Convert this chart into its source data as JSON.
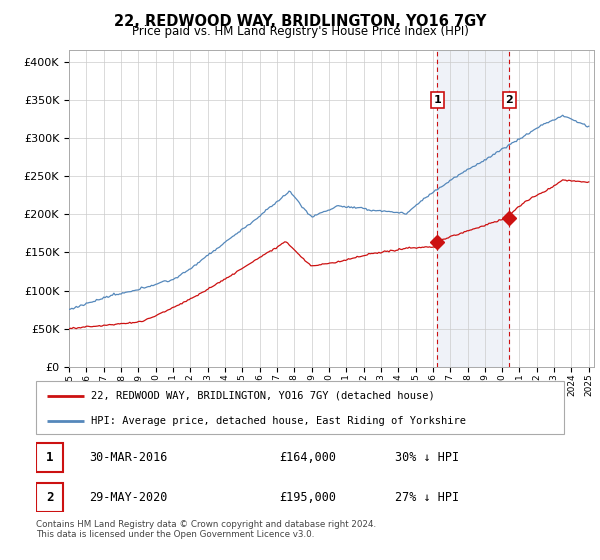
{
  "title": "22, REDWOOD WAY, BRIDLINGTON, YO16 7GY",
  "subtitle": "Price paid vs. HM Land Registry's House Price Index (HPI)",
  "y_values": [
    0,
    50000,
    100000,
    150000,
    200000,
    250000,
    300000,
    350000,
    400000
  ],
  "ylim": [
    0,
    415000
  ],
  "hpi_color": "#5588bb",
  "price_color": "#cc1111",
  "vline_color": "#cc1111",
  "marker1_year": 2016.25,
  "marker1_value": 164000,
  "marker2_year": 2020.42,
  "marker2_value": 195000,
  "legend_property_label": "22, REDWOOD WAY, BRIDLINGTON, YO16 7GY (detached house)",
  "legend_hpi_label": "HPI: Average price, detached house, East Riding of Yorkshire",
  "table_row1": [
    "1",
    "30-MAR-2016",
    "£164,000",
    "30% ↓ HPI"
  ],
  "table_row2": [
    "2",
    "29-MAY-2020",
    "£195,000",
    "27% ↓ HPI"
  ],
  "footer_text": "Contains HM Land Registry data © Crown copyright and database right 2024.\nThis data is licensed under the Open Government Licence v3.0.",
  "background_color": "#ffffff",
  "grid_color": "#cccccc",
  "span_color": "#ddeeff"
}
